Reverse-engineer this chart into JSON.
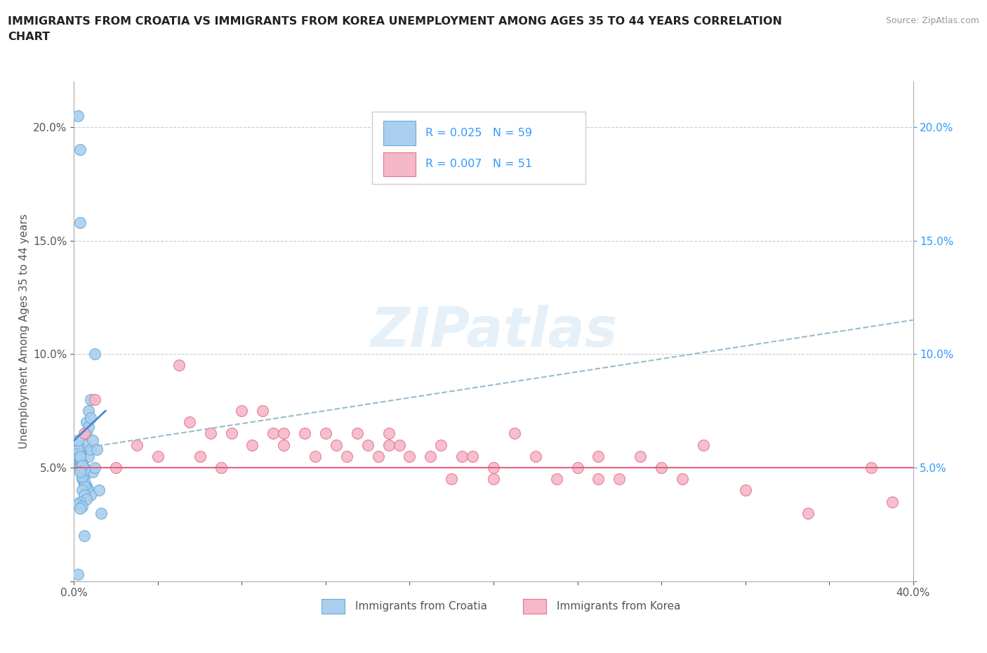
{
  "title": "IMMIGRANTS FROM CROATIA VS IMMIGRANTS FROM KOREA UNEMPLOYMENT AMONG AGES 35 TO 44 YEARS CORRELATION\nCHART",
  "source_text": "Source: ZipAtlas.com",
  "ylabel": "Unemployment Among Ages 35 to 44 years",
  "xlim": [
    0.0,
    0.4
  ],
  "ylim": [
    0.0,
    0.22
  ],
  "yticks": [
    0.0,
    0.05,
    0.1,
    0.15,
    0.2
  ],
  "ytick_labels": [
    "",
    "5.0%",
    "10.0%",
    "15.0%",
    "20.0%"
  ],
  "xticks": [
    0.0,
    0.04,
    0.08,
    0.12,
    0.16,
    0.2,
    0.24,
    0.28,
    0.32,
    0.36,
    0.4
  ],
  "xtick_labels": [
    "0.0%",
    "",
    "",
    "",
    "",
    "",
    "",
    "",
    "",
    "",
    "40.0%"
  ],
  "croatia_color": "#aacfee",
  "korea_color": "#f4b8c8",
  "croatia_edge_color": "#6aaad4",
  "korea_edge_color": "#e87090",
  "croatia_line_color": "#4488cc",
  "korea_line_color": "#e06080",
  "korea_trendline_color": "#99bbcc",
  "R_croatia": 0.025,
  "N_croatia": 59,
  "R_korea": 0.007,
  "N_korea": 51,
  "legend_color": "#3399ff",
  "background_color": "#ffffff",
  "grid_color": "#cccccc",
  "croatia_scatter_x": [
    0.002,
    0.003,
    0.003,
    0.004,
    0.004,
    0.005,
    0.005,
    0.005,
    0.006,
    0.006,
    0.006,
    0.007,
    0.007,
    0.007,
    0.008,
    0.008,
    0.008,
    0.009,
    0.009,
    0.01,
    0.01,
    0.011,
    0.012,
    0.013,
    0.003,
    0.004,
    0.005,
    0.006,
    0.007,
    0.008,
    0.003,
    0.004,
    0.005,
    0.006,
    0.003,
    0.004,
    0.005,
    0.002,
    0.003,
    0.004,
    0.002,
    0.003,
    0.002,
    0.003,
    0.004,
    0.005,
    0.003,
    0.004,
    0.003,
    0.002,
    0.004,
    0.005,
    0.006,
    0.003,
    0.002,
    0.004,
    0.003,
    0.005,
    0.002
  ],
  "croatia_scatter_y": [
    0.205,
    0.19,
    0.158,
    0.052,
    0.05,
    0.05,
    0.048,
    0.046,
    0.07,
    0.065,
    0.06,
    0.075,
    0.068,
    0.055,
    0.08,
    0.072,
    0.058,
    0.062,
    0.048,
    0.1,
    0.05,
    0.058,
    0.04,
    0.03,
    0.052,
    0.045,
    0.043,
    0.042,
    0.04,
    0.038,
    0.053,
    0.048,
    0.044,
    0.041,
    0.05,
    0.047,
    0.042,
    0.055,
    0.05,
    0.046,
    0.06,
    0.056,
    0.058,
    0.054,
    0.052,
    0.049,
    0.055,
    0.051,
    0.048,
    0.062,
    0.04,
    0.038,
    0.036,
    0.035,
    0.034,
    0.033,
    0.032,
    0.02,
    0.003
  ],
  "korea_scatter_x": [
    0.005,
    0.01,
    0.02,
    0.03,
    0.04,
    0.05,
    0.055,
    0.06,
    0.065,
    0.07,
    0.075,
    0.08,
    0.085,
    0.09,
    0.095,
    0.1,
    0.11,
    0.115,
    0.12,
    0.125,
    0.13,
    0.135,
    0.14,
    0.145,
    0.15,
    0.155,
    0.16,
    0.17,
    0.175,
    0.18,
    0.185,
    0.19,
    0.2,
    0.21,
    0.22,
    0.23,
    0.24,
    0.25,
    0.26,
    0.27,
    0.28,
    0.29,
    0.3,
    0.32,
    0.35,
    0.38,
    0.39,
    0.1,
    0.15,
    0.2,
    0.25
  ],
  "korea_scatter_y": [
    0.065,
    0.08,
    0.05,
    0.06,
    0.055,
    0.095,
    0.07,
    0.055,
    0.065,
    0.05,
    0.065,
    0.075,
    0.06,
    0.075,
    0.065,
    0.065,
    0.065,
    0.055,
    0.065,
    0.06,
    0.055,
    0.065,
    0.06,
    0.055,
    0.065,
    0.06,
    0.055,
    0.055,
    0.06,
    0.045,
    0.055,
    0.055,
    0.045,
    0.065,
    0.055,
    0.045,
    0.05,
    0.055,
    0.045,
    0.055,
    0.05,
    0.045,
    0.06,
    0.04,
    0.03,
    0.05,
    0.035,
    0.06,
    0.06,
    0.05,
    0.045
  ],
  "croatia_trend_x": [
    0.0,
    0.015
  ],
  "croatia_trend_y": [
    0.062,
    0.075
  ],
  "korea_trend_x": [
    0.0,
    0.4
  ],
  "korea_trend_y": [
    0.058,
    0.115
  ],
  "korea_hline_y": 0.05
}
